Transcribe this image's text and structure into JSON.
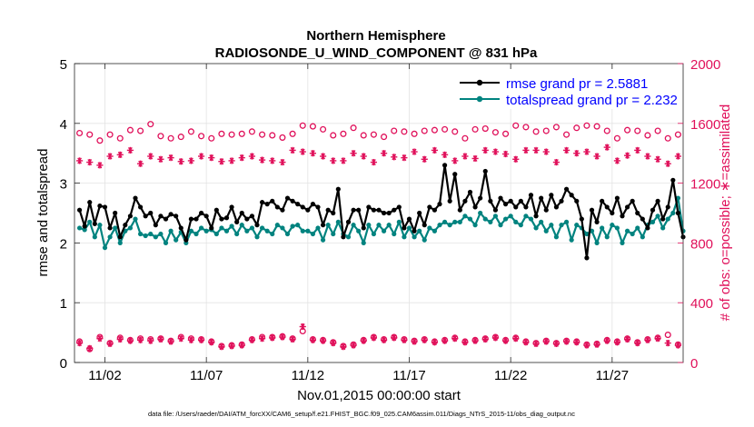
{
  "chart_data": {
    "type": "line",
    "title": "Northern Hemisphere",
    "subtitle": "RADIOSONDE_U_WIND_COMPONENT @ 831 hPa",
    "xlabel": "Nov.01,2015 00:00:00 start",
    "ylabel": "rmse and totalspread",
    "y2label": "# of obs: o=possible; ∗=assimilated",
    "footnote": "data file: /Users/raeder/DAI/ATM_forcXX/CAM6_setup/f.e21.FHIST_BGC.f09_025.CAM6assim.011/Diags_NTrS_2015-11/obs_diag_output.nc",
    "xlim": [
      0.5,
      30.5
    ],
    "ylim": [
      0,
      5
    ],
    "y2lim": [
      0,
      2000
    ],
    "x_ticks": [
      2,
      7,
      12,
      17,
      22,
      27
    ],
    "x_tick_labels": [
      "11/02",
      "11/07",
      "11/12",
      "11/17",
      "11/22",
      "11/27"
    ],
    "y_ticks": [
      0,
      1,
      2,
      3,
      4,
      5
    ],
    "y_tick_labels": [
      "0",
      "1",
      "2",
      "3",
      "4",
      "5"
    ],
    "y2_ticks": [
      0,
      400,
      800,
      1200,
      1600,
      2000
    ],
    "y2_tick_labels": [
      "0",
      "400",
      "800",
      "1200",
      "1600",
      "2000"
    ],
    "grid": true,
    "legend_position": "top-right",
    "n_points": 120,
    "x_start": 0.75,
    "x_step": 0.25,
    "series": [
      {
        "name": "rmse",
        "legend_label": "rmse grand pr = 2.5881",
        "color": "#000000",
        "marker": "dot",
        "axis": "left",
        "values": [
          2.55,
          2.28,
          2.68,
          2.32,
          2.62,
          2.6,
          2.25,
          2.5,
          2.1,
          2.3,
          2.45,
          2.75,
          2.6,
          2.45,
          2.5,
          2.3,
          2.45,
          2.4,
          2.48,
          2.45,
          2.25,
          2.05,
          2.4,
          2.4,
          2.5,
          2.45,
          2.25,
          2.55,
          2.4,
          2.42,
          2.6,
          2.35,
          2.5,
          2.4,
          2.45,
          2.3,
          2.68,
          2.65,
          2.7,
          2.6,
          2.55,
          2.75,
          2.7,
          2.65,
          2.6,
          2.55,
          2.65,
          2.6,
          2.3,
          2.55,
          2.5,
          2.9,
          2.1,
          2.35,
          2.55,
          2.55,
          2.25,
          2.6,
          2.55,
          2.55,
          2.5,
          2.5,
          2.55,
          2.6,
          2.25,
          2.4,
          2.2,
          2.5,
          2.3,
          2.6,
          2.55,
          2.65,
          3.3,
          2.7,
          3.15,
          2.55,
          2.7,
          2.85,
          2.6,
          2.75,
          3.2,
          2.7,
          2.55,
          2.75,
          2.65,
          2.7,
          2.6,
          2.7,
          2.6,
          2.8,
          2.45,
          2.75,
          2.55,
          2.8,
          2.6,
          2.7,
          2.9,
          2.8,
          2.7,
          2.4,
          1.75,
          2.55,
          2.35,
          2.7,
          2.6,
          2.5,
          2.75,
          2.45,
          2.6,
          2.7,
          2.5,
          2.4,
          2.25,
          2.55,
          2.7,
          2.4,
          2.6,
          3.05,
          2.5,
          2.1
        ]
      },
      {
        "name": "totalspread",
        "legend_label": "totalspread grand pr = 2.232",
        "color": "#00837f",
        "marker": "dot",
        "axis": "left",
        "values": [
          2.25,
          2.22,
          2.35,
          2.1,
          2.3,
          1.92,
          2.1,
          2.25,
          2.0,
          2.2,
          2.25,
          2.4,
          2.15,
          2.12,
          2.15,
          2.1,
          2.15,
          2.0,
          2.2,
          2.05,
          2.18,
          2.0,
          2.2,
          2.15,
          2.25,
          2.2,
          2.22,
          2.15,
          2.25,
          2.2,
          2.28,
          2.15,
          2.3,
          2.2,
          2.25,
          2.1,
          2.25,
          2.2,
          2.15,
          2.3,
          2.25,
          2.15,
          2.28,
          2.3,
          2.2,
          2.2,
          2.15,
          2.25,
          2.05,
          2.3,
          2.15,
          2.35,
          2.15,
          2.1,
          2.3,
          2.2,
          2.0,
          2.3,
          2.15,
          2.3,
          2.2,
          2.3,
          2.15,
          2.35,
          2.1,
          2.25,
          2.1,
          2.2,
          2.05,
          2.25,
          2.2,
          2.3,
          2.35,
          2.3,
          2.35,
          2.35,
          2.45,
          2.4,
          2.3,
          2.5,
          2.4,
          2.35,
          2.45,
          2.3,
          2.4,
          2.45,
          2.35,
          2.3,
          2.45,
          2.4,
          2.25,
          2.35,
          2.2,
          2.3,
          2.1,
          2.3,
          2.35,
          2.05,
          2.3,
          2.25,
          2.15,
          2.2,
          2.0,
          2.25,
          2.1,
          2.3,
          2.25,
          2.0,
          2.2,
          2.15,
          2.25,
          2.1,
          2.3,
          2.35,
          2.45,
          2.25,
          2.4,
          2.5,
          2.75,
          2.2
        ]
      },
      {
        "name": "obs possible",
        "color": "#e0105a",
        "marker": "circle",
        "axis": "right",
        "y_values_by_time": "every 2nd time step (00Z and 12Z)",
        "values": [
          1535,
          1525,
          1485,
          1525,
          1500,
          1555,
          1550,
          1595,
          1515,
          1500,
          1510,
          1545,
          1515,
          1500,
          1530,
          1525,
          1530,
          1545,
          1525,
          1520,
          1505,
          1530,
          1585,
          1580,
          1560,
          1520,
          1530,
          1570,
          1520,
          1525,
          1510,
          1550,
          1545,
          1530,
          1550,
          1555,
          1560,
          1545,
          1500,
          1560,
          1565,
          1540,
          1530,
          1585,
          1575,
          1545,
          1550,
          1575,
          1525,
          1570,
          1585,
          1580,
          1550,
          1500,
          1555,
          1550,
          1520,
          1550,
          1500,
          1525
        ]
      },
      {
        "name": "obs assimilated",
        "color": "#e0105a",
        "marker": "asterisk",
        "axis": "right",
        "y_values_by_time": "every 2nd time step (00Z and 12Z)",
        "values": [
          1350,
          1340,
          1320,
          1380,
          1390,
          1420,
          1330,
          1380,
          1360,
          1370,
          1345,
          1350,
          1380,
          1370,
          1345,
          1350,
          1370,
          1380,
          1355,
          1350,
          1340,
          1420,
          1410,
          1400,
          1380,
          1350,
          1350,
          1400,
          1380,
          1340,
          1400,
          1375,
          1370,
          1410,
          1360,
          1420,
          1390,
          1350,
          1380,
          1365,
          1420,
          1410,
          1395,
          1360,
          1420,
          1420,
          1410,
          1340,
          1420,
          1400,
          1410,
          1380,
          1440,
          1350,
          1385,
          1420,
          1380,
          1360,
          1330,
          1380
        ]
      },
      {
        "name": "obs possible (low)",
        "color": "#e0105a",
        "marker": "circle",
        "axis": "right",
        "values": [
          140,
          90,
          170,
          130,
          165,
          150,
          160,
          155,
          160,
          145,
          170,
          160,
          155,
          140,
          110,
          115,
          120,
          155,
          170,
          170,
          175,
          160,
          210,
          155,
          150,
          135,
          110,
          120,
          150,
          170,
          155,
          170,
          155,
          145,
          155,
          140,
          150,
          165,
          140,
          150,
          160,
          170,
          150,
          165,
          140,
          130,
          145,
          130,
          145,
          140,
          120,
          125,
          150,
          140,
          160,
          135,
          155,
          165,
          185,
          120
        ]
      },
      {
        "name": "obs assimilated (low)",
        "color": "#e0105a",
        "marker": "asterisk",
        "axis": "right",
        "values": [
          130,
          95,
          160,
          125,
          155,
          145,
          150,
          145,
          155,
          140,
          160,
          150,
          150,
          135,
          105,
          110,
          115,
          150,
          160,
          165,
          170,
          155,
          240,
          150,
          145,
          130,
          105,
          115,
          145,
          165,
          150,
          165,
          150,
          140,
          150,
          135,
          145,
          160,
          135,
          145,
          155,
          165,
          145,
          160,
          135,
          125,
          140,
          125,
          140,
          135,
          115,
          120,
          145,
          135,
          155,
          130,
          150,
          160,
          130,
          115
        ]
      }
    ]
  }
}
